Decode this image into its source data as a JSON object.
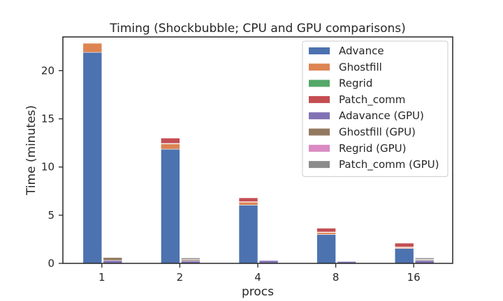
{
  "chart_data": {
    "type": "bar",
    "stacked": true,
    "title": "Timing (Shockbubble; CPU and GPU comparisons)",
    "xlabel": "procs",
    "ylabel": "Time (minutes)",
    "categories": [
      "1",
      "2",
      "4",
      "8",
      "16"
    ],
    "ylim": [
      0,
      23.5
    ],
    "yticks": [
      0,
      5,
      10,
      15,
      20
    ],
    "grid": false,
    "legend_position": "top-right",
    "groups": [
      {
        "name": "CPU",
        "series": [
          {
            "name": "Advance",
            "color": "#4c72b0",
            "values": [
              21.9,
              11.85,
              6.05,
              3.0,
              1.55
            ]
          },
          {
            "name": "Ghostfill",
            "color": "#dd8452",
            "values": [
              0.95,
              0.55,
              0.3,
              0.2,
              0.1
            ]
          },
          {
            "name": "Regrid",
            "color": "#55a868",
            "values": [
              0.05,
              0.05,
              0.05,
              0.05,
              0.05
            ]
          },
          {
            "name": "Patch_comm",
            "color": "#c44e52",
            "values": [
              0.05,
              0.55,
              0.4,
              0.4,
              0.4
            ]
          }
        ]
      },
      {
        "name": "GPU",
        "series": [
          {
            "name": "Adavance (GPU)",
            "color": "#8172b3",
            "values": [
              0.3,
              0.25,
              0.3,
              0.2,
              0.3
            ]
          },
          {
            "name": "Ghostfill (GPU)",
            "color": "#937860",
            "values": [
              0.3,
              0.15,
              0.05,
              0.05,
              0.1
            ]
          },
          {
            "name": "Regrid (GPU)",
            "color": "#da8bc3",
            "values": [
              0.02,
              0.02,
              0.02,
              0.02,
              0.02
            ]
          },
          {
            "name": "Patch_comm (GPU)",
            "color": "#8c8c8c",
            "values": [
              0.05,
              0.15,
              0.03,
              0.03,
              0.15
            ]
          }
        ]
      }
    ]
  }
}
